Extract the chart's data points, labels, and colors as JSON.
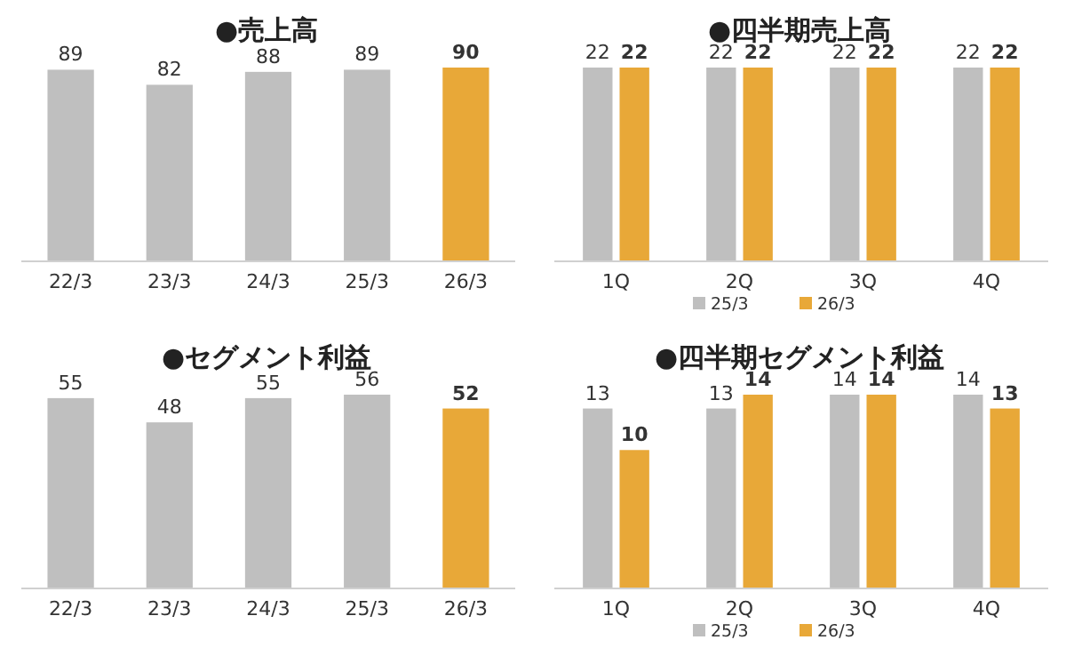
{
  "chart_data": [
    {
      "type": "bar",
      "title": "●売上高",
      "categories": [
        "22/3",
        "23/3",
        "24/3",
        "25/3",
        "26/3"
      ],
      "values": [
        89,
        82,
        88,
        89,
        90
      ],
      "colors": [
        "#bfbfbf",
        "#bfbfbf",
        "#bfbfbf",
        "#bfbfbf",
        "#e8a838"
      ],
      "data_labels": true,
      "tick_labels": "x"
    },
    {
      "type": "bar",
      "title": "●四半期売上高",
      "categories": [
        "1Q",
        "2Q",
        "3Q",
        "4Q"
      ],
      "series": [
        {
          "name": "25/3",
          "color": "#bfbfbf",
          "values": [
            22,
            22,
            22,
            22
          ]
        },
        {
          "name": "26/3",
          "color": "#e8a838",
          "values": [
            22,
            22,
            22,
            22
          ]
        }
      ],
      "data_labels": true,
      "tick_labels": "x",
      "legend": "bottom"
    },
    {
      "type": "bar",
      "title": "●セグメント利益",
      "categories": [
        "22/3",
        "23/3",
        "24/3",
        "25/3",
        "26/3"
      ],
      "values": [
        55,
        48,
        55,
        56,
        52
      ],
      "colors": [
        "#bfbfbf",
        "#bfbfbf",
        "#bfbfbf",
        "#bfbfbf",
        "#e8a838"
      ],
      "data_labels": true,
      "tick_labels": "x"
    },
    {
      "type": "bar",
      "title": "●四半期セグメント利益",
      "categories": [
        "1Q",
        "2Q",
        "3Q",
        "4Q"
      ],
      "series": [
        {
          "name": "25/3",
          "color": "#bfbfbf",
          "values": [
            13,
            13,
            14,
            14
          ]
        },
        {
          "name": "26/3",
          "color": "#e8a838",
          "values": [
            10,
            14,
            14,
            13
          ]
        }
      ],
      "data_labels": true,
      "tick_labels": "x",
      "legend": "bottom"
    }
  ]
}
